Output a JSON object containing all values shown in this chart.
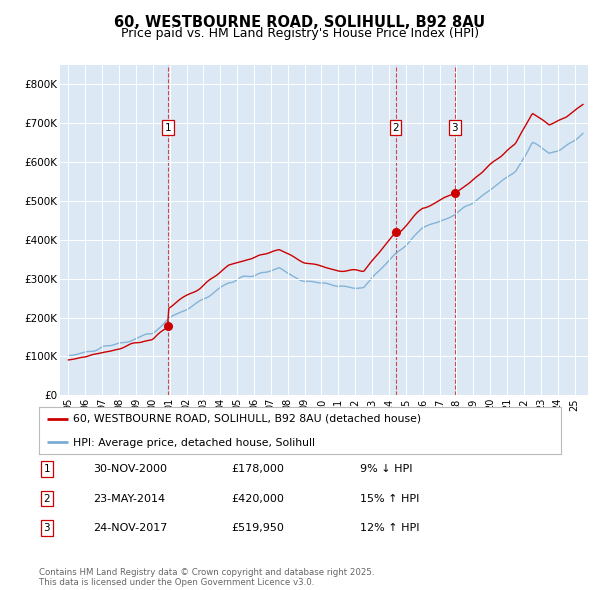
{
  "title_line1": "60, WESTBOURNE ROAD, SOLIHULL, B92 8AU",
  "title_line2": "Price paid vs. HM Land Registry's House Price Index (HPI)",
  "fig_bg_color": "#ffffff",
  "plot_bg_color": "#dce9f5",
  "red_line_label": "60, WESTBOURNE ROAD, SOLIHULL, B92 8AU (detached house)",
  "blue_line_label": "HPI: Average price, detached house, Solihull",
  "transactions": [
    {
      "num": 1,
      "date": "30-NOV-2000",
      "price": 178000,
      "pct": "9%",
      "dir": "↓",
      "year_x": 2000.92
    },
    {
      "num": 2,
      "date": "23-MAY-2014",
      "price": 420000,
      "pct": "15%",
      "dir": "↑",
      "year_x": 2014.39
    },
    {
      "num": 3,
      "date": "24-NOV-2017",
      "price": 519950,
      "pct": "12%",
      "dir": "↑",
      "year_x": 2017.9
    }
  ],
  "footer": "Contains HM Land Registry data © Crown copyright and database right 2025.\nThis data is licensed under the Open Government Licence v3.0.",
  "ylim": [
    0,
    850000
  ],
  "yticks": [
    0,
    100000,
    200000,
    300000,
    400000,
    500000,
    600000,
    700000,
    800000
  ],
  "ytick_labels": [
    "£0",
    "£100K",
    "£200K",
    "£300K",
    "£400K",
    "£500K",
    "£600K",
    "£700K",
    "£800K"
  ],
  "xlim_start": 1994.5,
  "xlim_end": 2025.8,
  "red_color": "#cc0000",
  "blue_color": "#7aadd4",
  "dashed_color": "#cc0000",
  "xtick_years": [
    1995,
    1996,
    1997,
    1998,
    1999,
    2000,
    2001,
    2002,
    2003,
    2004,
    2005,
    2006,
    2007,
    2008,
    2009,
    2010,
    2011,
    2012,
    2013,
    2014,
    2015,
    2016,
    2017,
    2018,
    2019,
    2020,
    2021,
    2022,
    2023,
    2024,
    2025
  ]
}
